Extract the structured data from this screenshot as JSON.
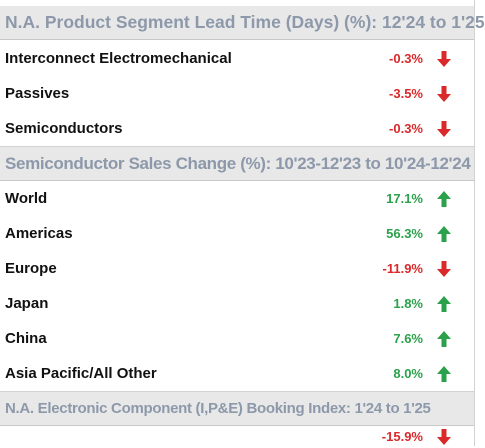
{
  "colors": {
    "positive": "#2aa14a",
    "negative": "#d9292b",
    "header_text": "#8d99aa",
    "header_bg": "#e8e8e8"
  },
  "sections": {
    "lead_time": {
      "title": "N.A. Product Segment Lead Time (Days) (%): 12'24 to 1'25",
      "rows": [
        {
          "label": "Interconnect Electromechanical",
          "value": "-0.3%",
          "trend": "down"
        },
        {
          "label": "Passives",
          "value": "-3.5%",
          "trend": "down"
        },
        {
          "label": "Semiconductors",
          "value": "-0.3%",
          "trend": "down"
        }
      ]
    },
    "sales_change": {
      "title": "Semiconductor Sales Change (%): 10'23-12'23 to 10'24-12'24",
      "rows": [
        {
          "label": "World",
          "value": "17.1%",
          "trend": "up"
        },
        {
          "label": "Americas",
          "value": "56.3%",
          "trend": "up"
        },
        {
          "label": "Europe",
          "value": "-11.9%",
          "trend": "down"
        },
        {
          "label": "Japan",
          "value": "1.8%",
          "trend": "up"
        },
        {
          "label": "China",
          "value": "7.6%",
          "trend": "up"
        },
        {
          "label": "Asia Pacific/All Other",
          "value": "8.0%",
          "trend": "up"
        }
      ]
    },
    "booking_index": {
      "title": "N.A. Electronic Component (I,P&E) Booking Index: 1'24 to 1'25",
      "rows": [
        {
          "label": "",
          "value": "-15.9%",
          "trend": "down"
        }
      ]
    }
  }
}
